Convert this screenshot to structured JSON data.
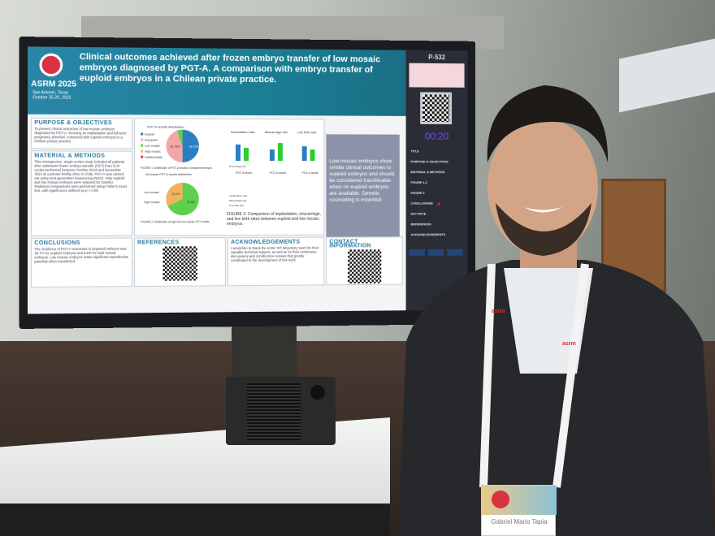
{
  "poster": {
    "conference": "ASRM 2025",
    "conference_location": "San Antonio, Texas",
    "conference_dates": "October 25-29, 2025",
    "title": "Clinical outcomes achieved after frozen embryo transfer of low mosaic embryos diagnosed by PGT-A. A comparison with embryo transfer of euploid embryos in a Chilean private practice.",
    "sections": {
      "purpose": "PURPOSE & OBJECTIVES",
      "purpose_text": "To present clinical outcomes of low mosaic embryos diagnosed by PGT-A, focusing on implantation and full-term pregnancy potential, compared with euploid embryos in a Chilean private practice.",
      "methods": "MATERIAL & METHODS",
      "methods_text": "This retrospective, single-center study included all patients who underwent frozen embryo transfer (FET) from ICSI cycles performed between October 2019 and December 2023 at a private fertility clinic in Chile. PGT-A was carried out using next-generation sequencing (NGS). Only euploid and low mosaic embryos were selected for transfer. Statistical comparisons were performed using Fisher's exact test, with significance defined as p < 0.05.",
      "conclusions": "CONCLUSIONS",
      "conclusions_text": "The incidence of PGT-A outcomes in biopsied embryos was 49.7% for euploid embryos and 6.9% for total mosaic embryos. Low mosaic embryos retain significant reproductive potential when transferred.",
      "references": "REFERENCES",
      "acknowledgements": "ACKNOWLEDGEMENTS",
      "acknowledgements_text": "I would like to thank the entire IVF laboratory team for their valuable technical support, as well as for their continuous discussions and constructive reviews that greatly contributed to the development of this work.",
      "contact": "CONTACT INFORMATION"
    },
    "key_message": "Low-mosaic embryos show similar clinical outcomes to euploid embryos and should be considered transferable when no euploid embryos are available. Genetic counseling is essential.",
    "figures": {
      "pie1_title": "PGT-A results distribution",
      "pie1_legend": [
        "Euploid",
        "Aneuploid",
        "Low mosaic",
        "High mosaic",
        "Indeterminate"
      ],
      "pie1_labels": [
        "49.72%",
        "42.75%"
      ],
      "pie2_title": "All mosaic PGT-A results distribution",
      "pie2_legend": [
        "Low mosaic",
        "High mosaic"
      ],
      "pie2_labels": [
        "25.0%",
        "75.0%"
      ],
      "bar_titles": [
        "Implantation rate",
        "Miscarriage rate",
        "Live birth rate"
      ],
      "bar_xlabel": "PGT-A result",
      "bar_ylabel": "Percentage (%)",
      "bar_categories": [
        "Euploid",
        "Low mosaic"
      ],
      "caption1": "FIGURE 1: Distribution of PGT-A results in analyzed embryos.",
      "caption2": "FIGURE 2: Distribution of high and low mosaic PGT results.",
      "caption3": "FIGURE 3: Comparison of implantation, miscarriage, and live birth rates between euploid and low mosaic embryos.",
      "table_rows": [
        "Implantation rate",
        "Miscarriage rate",
        "Live birth rate"
      ]
    },
    "colors": {
      "euploid": "#2a7fc1",
      "aneuploid": "#f4a6a6",
      "low_mosaic": "#5fcf4e",
      "high_mosaic": "#f2b35e",
      "indeterminate": "#e0405a",
      "header": "#1f7f98"
    }
  },
  "sidebar": {
    "poster_number": "P-532",
    "timer": "00:20",
    "items": [
      "TITLE",
      "PURPOSE & OBJECTIVES",
      "MATERIAL & METHODS",
      "FIGURE 1,2",
      "FIGURE 3",
      "CONCLUSIONS",
      "KEY NOTE",
      "REFERENCES",
      "ACKNOWLEDGEMENTS"
    ]
  },
  "badge": {
    "name": "Gabriel Mario Tapia",
    "lanyard": "asrm"
  }
}
